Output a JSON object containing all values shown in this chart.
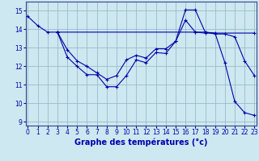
{
  "xlabel": "Graphe des températures (°c)",
  "bg_color": "#cde8f0",
  "line_color": "#0000aa",
  "grid_color": "#99bbcc",
  "series": [
    {
      "x": [
        0,
        1,
        2,
        3
      ],
      "y": [
        14.7,
        14.2,
        13.85,
        13.85
      ]
    },
    {
      "x": [
        3,
        17,
        18,
        23
      ],
      "y": [
        13.85,
        13.85,
        13.8,
        13.8
      ]
    },
    {
      "x": [
        3,
        4,
        5,
        6,
        7,
        8,
        9,
        10,
        11,
        12,
        13,
        14,
        15,
        16,
        17,
        18,
        19,
        20,
        21,
        22,
        23
      ],
      "y": [
        13.85,
        12.5,
        12.0,
        11.55,
        11.55,
        10.9,
        10.9,
        11.5,
        12.35,
        12.2,
        12.75,
        12.7,
        13.35,
        15.05,
        15.05,
        13.85,
        13.8,
        12.2,
        10.1,
        9.5,
        9.35
      ]
    },
    {
      "x": [
        3,
        4,
        5,
        6,
        7,
        8,
        9,
        10,
        11,
        12,
        13,
        14,
        15,
        16,
        17,
        18,
        19,
        20,
        21,
        22,
        23
      ],
      "y": [
        13.85,
        12.9,
        12.3,
        12.0,
        11.65,
        11.3,
        11.5,
        12.35,
        12.6,
        12.45,
        12.95,
        12.95,
        13.35,
        14.5,
        13.85,
        13.85,
        13.75,
        13.75,
        13.6,
        12.3,
        11.5
      ]
    }
  ],
  "ylim": [
    8.8,
    15.5
  ],
  "xlim": [
    -0.2,
    23.2
  ],
  "yticks": [
    9,
    10,
    11,
    12,
    13,
    14,
    15
  ],
  "xticks": [
    0,
    1,
    2,
    3,
    4,
    5,
    6,
    7,
    8,
    9,
    10,
    11,
    12,
    13,
    14,
    15,
    16,
    17,
    18,
    19,
    20,
    21,
    22,
    23
  ],
  "tick_fontsize": 5.5,
  "xlabel_fontsize": 7.0,
  "xlabel_color": "#0000aa",
  "tick_color": "#0000aa"
}
